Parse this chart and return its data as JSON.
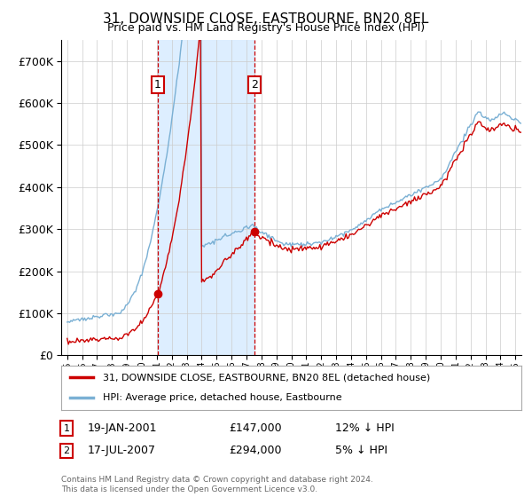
{
  "title": "31, DOWNSIDE CLOSE, EASTBOURNE, BN20 8EL",
  "subtitle": "Price paid vs. HM Land Registry's House Price Index (HPI)",
  "sale1_date": "19-JAN-2001",
  "sale1_price": 147000,
  "sale1_hpi": "12% ↓ HPI",
  "sale1_label": "1",
  "sale2_date": "17-JUL-2007",
  "sale2_price": 294000,
  "sale2_hpi": "5% ↓ HPI",
  "sale2_label": "2",
  "legend_red": "31, DOWNSIDE CLOSE, EASTBOURNE, BN20 8EL (detached house)",
  "legend_blue": "HPI: Average price, detached house, Eastbourne",
  "footer": "Contains HM Land Registry data © Crown copyright and database right 2024.\nThis data is licensed under the Open Government Licence v3.0.",
  "red_color": "#cc0000",
  "blue_color": "#7ab0d4",
  "shade_color": "#ddeeff",
  "vline_color": "#cc0000",
  "grid_color": "#cccccc",
  "marker_y1": 643000,
  "marker_y2": 643000,
  "sale1_x": 2001.05,
  "sale2_x": 2007.54,
  "ylim_max": 750000,
  "yticks": [
    0,
    100000,
    200000,
    300000,
    400000,
    500000,
    600000,
    700000
  ],
  "xmin": 1994.6,
  "xmax": 2025.4
}
